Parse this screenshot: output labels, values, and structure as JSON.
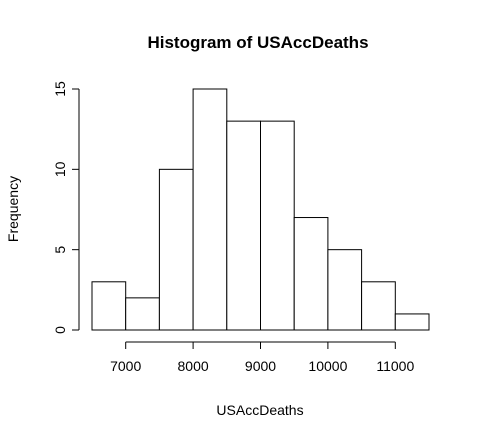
{
  "chart_data": {
    "type": "bar",
    "title": "Histogram of USAccDeaths",
    "xlabel": "USAccDeaths",
    "ylabel": "Frequency",
    "bins": [
      {
        "from": 6500,
        "to": 7000,
        "count": 3
      },
      {
        "from": 7000,
        "to": 7500,
        "count": 2
      },
      {
        "from": 7500,
        "to": 8000,
        "count": 10
      },
      {
        "from": 8000,
        "to": 8500,
        "count": 15
      },
      {
        "from": 8500,
        "to": 9000,
        "count": 13
      },
      {
        "from": 9000,
        "to": 9500,
        "count": 13
      },
      {
        "from": 9500,
        "to": 10000,
        "count": 7
      },
      {
        "from": 10000,
        "to": 10500,
        "count": 5
      },
      {
        "from": 10500,
        "to": 11000,
        "count": 3
      },
      {
        "from": 11000,
        "to": 11500,
        "count": 1
      }
    ],
    "xticks": [
      7000,
      8000,
      9000,
      10000,
      11000
    ],
    "yticks": [
      0,
      5,
      10,
      15
    ],
    "xlim": [
      6500,
      11500
    ],
    "ylim": [
      0,
      15
    ],
    "grid": false,
    "legend": "none"
  }
}
